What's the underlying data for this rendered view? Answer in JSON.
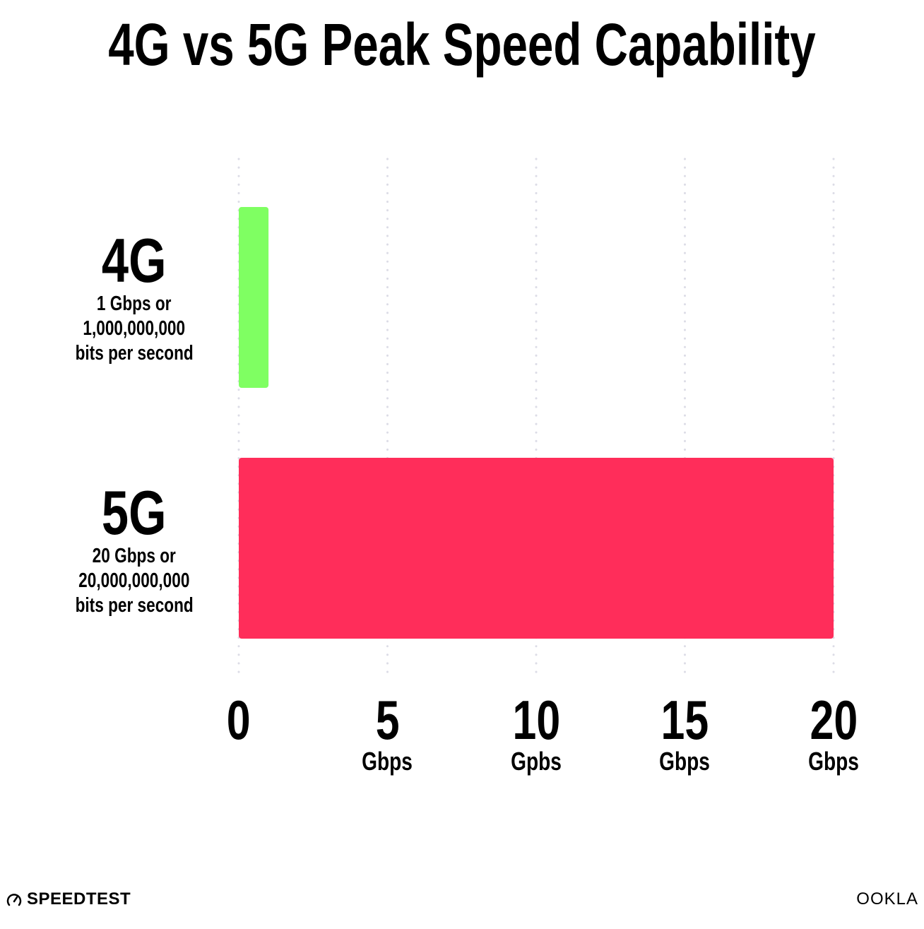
{
  "chart_data": {
    "type": "bar",
    "orientation": "horizontal",
    "title": "4G vs 5G Peak Speed Capability",
    "categories": [
      "4G",
      "5G"
    ],
    "category_sublabels": [
      [
        "1 Gbps or",
        "1,000,000,000",
        "bits per second"
      ],
      [
        "20 Gbps or",
        "20,000,000,000",
        "bits per second"
      ]
    ],
    "values": [
      1,
      20
    ],
    "colors": [
      "#7fff62",
      "#ff2d5a"
    ],
    "xlim": [
      0,
      20
    ],
    "ticks": [
      {
        "value": 0,
        "label": "0",
        "unit": ""
      },
      {
        "value": 5,
        "label": "5",
        "unit": "Gbps"
      },
      {
        "value": 10,
        "label": "10",
        "unit": "Gpbs"
      },
      {
        "value": 15,
        "label": "15",
        "unit": "Gbps"
      },
      {
        "value": 20,
        "label": "20",
        "unit": "Gbps"
      }
    ],
    "grid": "vertical dotted",
    "gridColor": "#dcdce6"
  },
  "footer": {
    "left_logo": "SPEEDTEST",
    "right_logo": "OOKLA"
  }
}
